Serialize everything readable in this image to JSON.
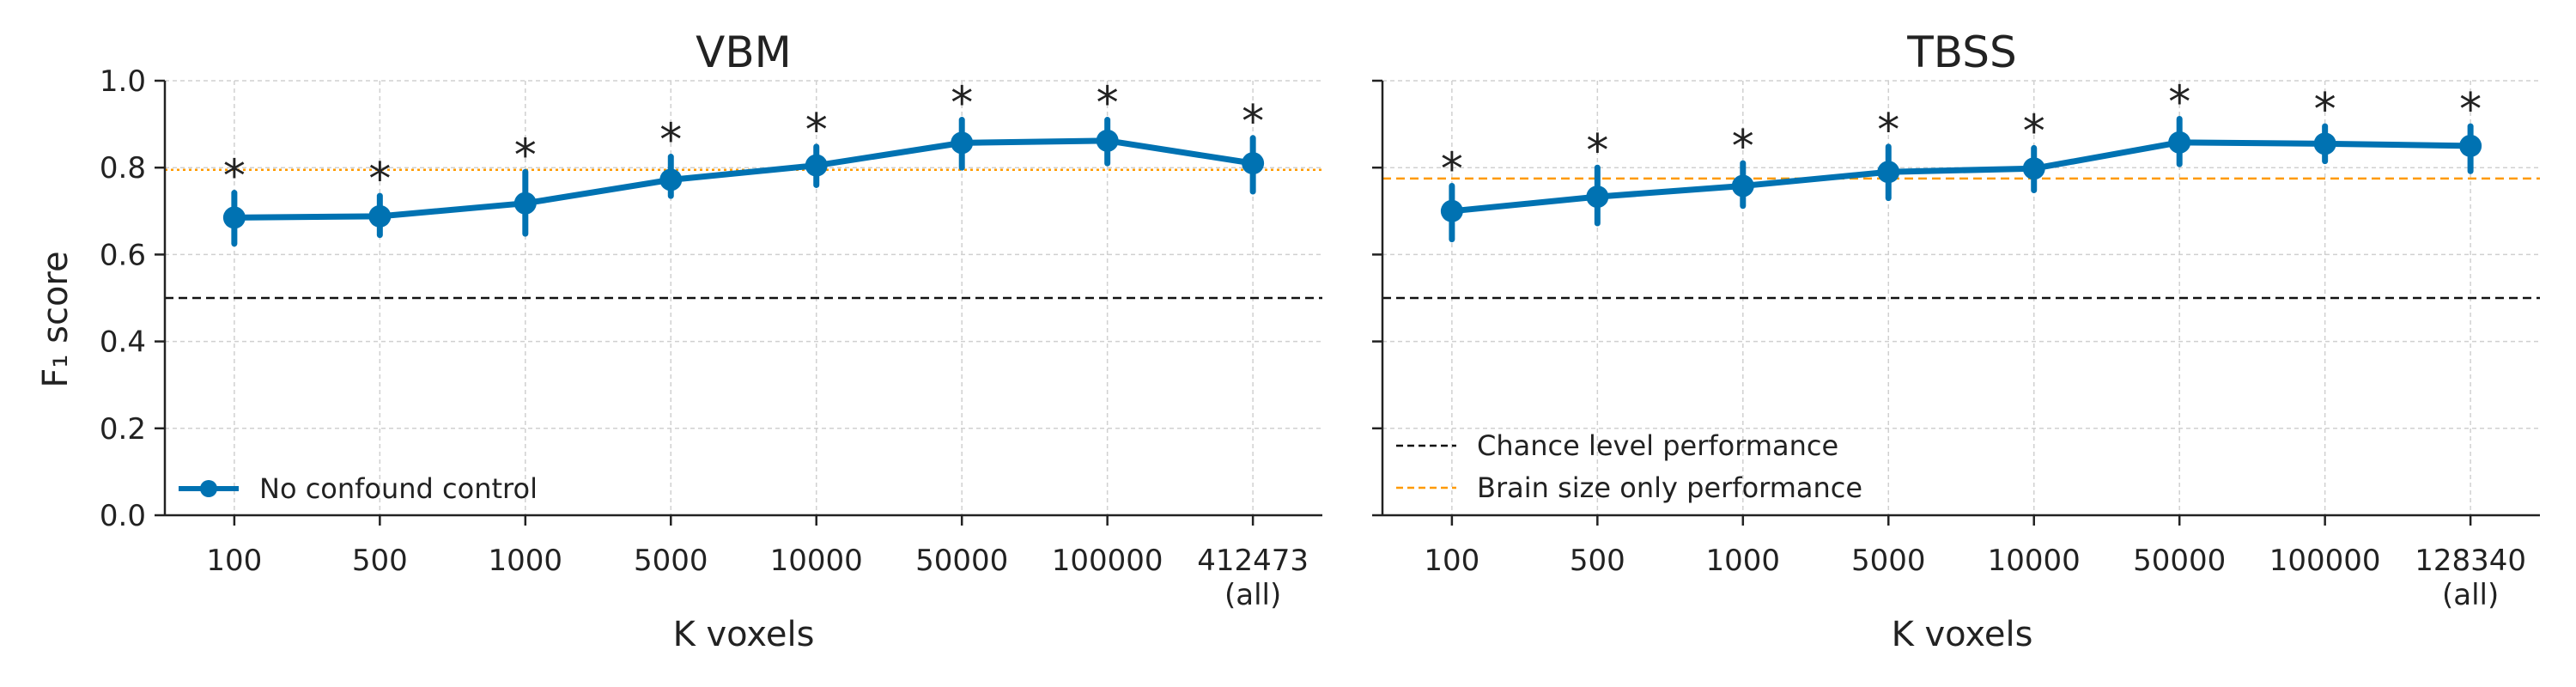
{
  "chart_data": [
    {
      "type": "line",
      "title": "VBM",
      "xlabel": "K voxels",
      "ylabel": "F₁ score",
      "ylim": [
        0.0,
        1.0
      ],
      "yticks": [
        "0.0",
        "0.2",
        "0.4",
        "0.6",
        "0.8",
        "1.0"
      ],
      "categories": [
        "100",
        "500",
        "1000",
        "5000",
        "10000",
        "50000",
        "100000",
        "412473\n(all)"
      ],
      "series": [
        {
          "name": "No confound control",
          "color": "#0072b2",
          "values": [
            0.685,
            0.688,
            0.718,
            0.772,
            0.805,
            0.857,
            0.862,
            0.81
          ],
          "err_low": [
            0.625,
            0.645,
            0.648,
            0.735,
            0.76,
            0.8,
            0.81,
            0.745
          ],
          "err_high": [
            0.742,
            0.735,
            0.79,
            0.825,
            0.848,
            0.91,
            0.91,
            0.868
          ],
          "significance": [
            "*",
            "*",
            "*",
            "*",
            "*",
            "*",
            "*",
            "*"
          ]
        }
      ],
      "reference_lines": [
        {
          "name": "Chance level performance",
          "y": 0.5,
          "color": "#111111",
          "style": "dashed"
        },
        {
          "name": "Brain size only performance",
          "y": 0.795,
          "color": "#ff9a00",
          "style": "dotted"
        }
      ],
      "legend": "lower-left",
      "grid": true
    },
    {
      "type": "line",
      "title": "TBSS",
      "xlabel": "K voxels",
      "ylim": [
        0.0,
        1.0
      ],
      "categories": [
        "100",
        "500",
        "1000",
        "5000",
        "10000",
        "50000",
        "100000",
        "128340\n(all)"
      ],
      "series": [
        {
          "color": "#0072b2",
          "values": [
            0.7,
            0.733,
            0.758,
            0.79,
            0.798,
            0.858,
            0.855,
            0.85
          ],
          "err_low": [
            0.635,
            0.672,
            0.712,
            0.73,
            0.748,
            0.808,
            0.815,
            0.792
          ],
          "err_high": [
            0.758,
            0.8,
            0.81,
            0.848,
            0.845,
            0.912,
            0.895,
            0.895
          ],
          "significance": [
            "*",
            "*",
            "*",
            "*",
            "*",
            "*",
            "*",
            "*"
          ]
        }
      ],
      "reference_lines": [
        {
          "name": "Chance level performance",
          "y": 0.5,
          "color": "#111111",
          "style": "dashed"
        },
        {
          "name": "Brain size only performance",
          "y": 0.775,
          "color": "#ff9a00",
          "style": "dashed"
        }
      ],
      "legend": "lower-left",
      "grid": true
    }
  ]
}
